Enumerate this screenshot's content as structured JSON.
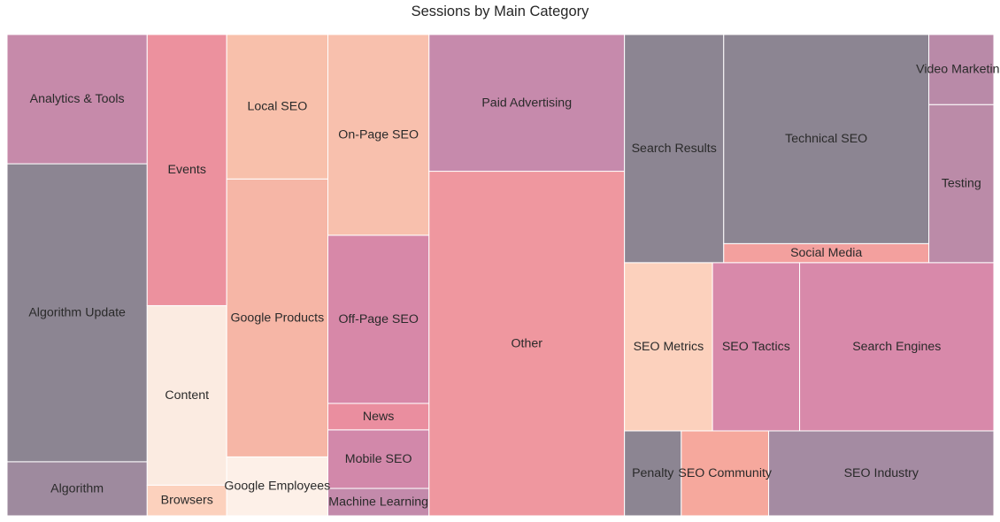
{
  "chart_data": {
    "type": "treemap",
    "title": "Sessions by Main Category",
    "xlabel": "",
    "ylabel": "",
    "axes_visible": false,
    "value_units": "relative sessions (estimated from tile area)",
    "items": [
      {
        "label": "Algorithm",
        "value": 9676,
        "color": "#9e8a9e"
      },
      {
        "label": "Algorithm Update",
        "value": 53300,
        "color": "#8c8592"
      },
      {
        "label": "Analytics & Tools",
        "value": 23124,
        "color": "#c68aaa"
      },
      {
        "label": "Browsers",
        "value": 3116,
        "color": "#fcd1bd"
      },
      {
        "label": "Content",
        "value": 18236,
        "color": "#fbebe1"
      },
      {
        "label": "Events",
        "value": 27542,
        "color": "#ec919e"
      },
      {
        "label": "Google Employees",
        "value": 7614,
        "color": "#fdf0e8"
      },
      {
        "label": "Google Products",
        "value": 35908,
        "color": "#f6b6a6"
      },
      {
        "label": "Local SEO",
        "value": 18666,
        "color": "#f8c0ab"
      },
      {
        "label": "Machine Learning",
        "value": 3538,
        "color": "#c38aab"
      },
      {
        "label": "Mobile SEO",
        "value": 7564,
        "color": "#d288aa"
      },
      {
        "label": "News",
        "value": 3416,
        "color": "#ea8e9f"
      },
      {
        "label": "Off-Page SEO",
        "value": 21716,
        "color": "#d788a8"
      },
      {
        "label": "On-Page SEO",
        "value": 25920,
        "color": "#f8c0ad"
      },
      {
        "label": "Other",
        "value": 85995,
        "color": "#ef979f"
      },
      {
        "label": "Paid Advertising",
        "value": 34128,
        "color": "#c68aac"
      },
      {
        "label": "Penalty",
        "value": 6162,
        "color": "#8c8592"
      },
      {
        "label": "SEO Community",
        "value": 9480,
        "color": "#f6a89d"
      },
      {
        "label": "SEO Industry",
        "value": 24428,
        "color": "#a48ba2"
      },
      {
        "label": "SEO Metrics",
        "value": 18912,
        "color": "#fcd1bd"
      },
      {
        "label": "SEO Tactics",
        "value": 18715,
        "color": "#d889aa"
      },
      {
        "label": "Search Engines",
        "value": 41720,
        "color": "#d889aa"
      },
      {
        "label": "Search Results",
        "value": 28906,
        "color": "#8c8592"
      },
      {
        "label": "Social Media",
        "value": 4980,
        "color": "#f3a09e"
      },
      {
        "label": "Technical SEO",
        "value": 54780,
        "color": "#8c8592"
      },
      {
        "label": "Testing",
        "value": 13110,
        "color": "#bb8ba8"
      },
      {
        "label": "Video Marketing",
        "value": 5814,
        "color": "#b98aa8"
      }
    ]
  }
}
